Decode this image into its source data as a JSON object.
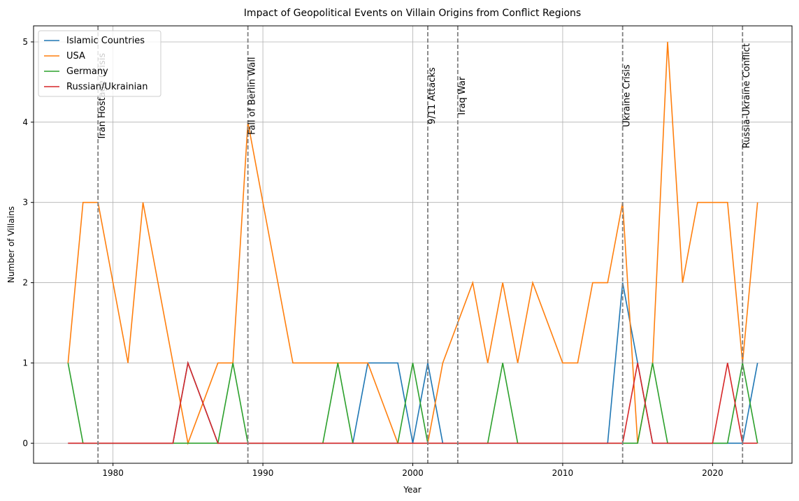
{
  "chart_data": {
    "type": "line",
    "title": "Impact of Geopolitical Events on Villain Origins from Conflict Regions",
    "x_label": "Year",
    "y_label": "Number of Villains",
    "x": [
      1977,
      1978,
      1979,
      1980,
      1981,
      1982,
      1983,
      1984,
      1985,
      1987,
      1988,
      1989,
      1990,
      1991,
      1992,
      1993,
      1994,
      1995,
      1996,
      1997,
      1998,
      1999,
      2000,
      2001,
      2002,
      2004,
      2005,
      2006,
      2007,
      2008,
      2010,
      2011,
      2012,
      2013,
      2014,
      2015,
      2016,
      2017,
      2018,
      2019,
      2020,
      2021,
      2022,
      2023
    ],
    "series": [
      {
        "name": "Islamic Countries",
        "color": "#1f77b4",
        "values": [
          0,
          0,
          0,
          0,
          0,
          0,
          0,
          0,
          1,
          0,
          0,
          0,
          0,
          0,
          0,
          0,
          0,
          0,
          0,
          1,
          1,
          1,
          0,
          1,
          0,
          0,
          0,
          0,
          0,
          0,
          0,
          0,
          0,
          0,
          2,
          1,
          0,
          0,
          0,
          0,
          0,
          0,
          0,
          1
        ]
      },
      {
        "name": "USA",
        "color": "#ff7f0e",
        "values": [
          1,
          3,
          3,
          2,
          1,
          3,
          2,
          1,
          0,
          1,
          1,
          4,
          3,
          2,
          1,
          1,
          1,
          1,
          1,
          1,
          0.5,
          0,
          0,
          0,
          1,
          2,
          1,
          2,
          1,
          2,
          1,
          1,
          2,
          2,
          3,
          0,
          1,
          5,
          2,
          3,
          3,
          3,
          1,
          3
        ]
      },
      {
        "name": "Germany",
        "color": "#2ca02c",
        "values": [
          1,
          0,
          0,
          0,
          0,
          0,
          0,
          0,
          0,
          0,
          1,
          0,
          0,
          0,
          0,
          0,
          0,
          1,
          0,
          0,
          0,
          0,
          1,
          0,
          0,
          0,
          0,
          1,
          0,
          0,
          0,
          0,
          0,
          0,
          0,
          0,
          1,
          0,
          0,
          0,
          0,
          0,
          1,
          0
        ]
      },
      {
        "name": "Russian/Ukrainian",
        "color": "#d62728",
        "values": [
          0,
          0,
          0,
          0,
          0,
          0,
          0,
          0,
          1,
          0,
          0,
          0,
          0,
          0,
          0,
          0,
          0,
          0,
          0,
          0,
          0,
          0,
          0,
          0,
          0,
          0,
          0,
          0,
          0,
          0,
          0,
          0,
          0,
          0,
          0,
          1,
          0,
          0,
          0,
          0,
          0,
          1,
          0,
          0
        ]
      }
    ],
    "events": [
      {
        "x": 1979,
        "label": "Iran Hostage Crisis"
      },
      {
        "x": 1989,
        "label": "Fall of Berlin Wall"
      },
      {
        "x": 2001,
        "label": "9/11 Attacks"
      },
      {
        "x": 2003,
        "label": "Iraq War"
      },
      {
        "x": 2014,
        "label": "Ukraine Crisis"
      },
      {
        "x": 2022,
        "label": "Russia-Ukraine Conflict"
      }
    ],
    "xlim": [
      1974.7,
      2025.3
    ],
    "ylim": [
      -0.25,
      5.2
    ],
    "xticks": [
      1980,
      1990,
      2000,
      2010,
      2020
    ],
    "yticks": [
      0,
      1,
      2,
      3,
      4,
      5
    ],
    "grid": true,
    "legend": "upper left"
  }
}
